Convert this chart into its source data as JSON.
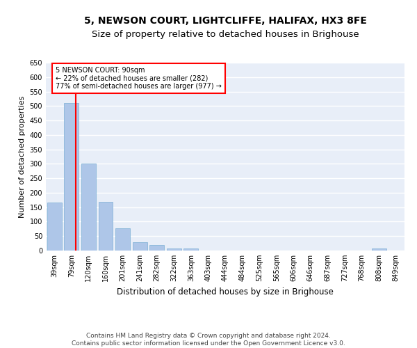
{
  "title": "5, NEWSON COURT, LIGHTCLIFFE, HALIFAX, HX3 8FE",
  "subtitle": "Size of property relative to detached houses in Brighouse",
  "xlabel": "Distribution of detached houses by size in Brighouse",
  "ylabel": "Number of detached properties",
  "categories": [
    "39sqm",
    "79sqm",
    "120sqm",
    "160sqm",
    "201sqm",
    "241sqm",
    "282sqm",
    "322sqm",
    "363sqm",
    "403sqm",
    "444sqm",
    "484sqm",
    "525sqm",
    "565sqm",
    "606sqm",
    "646sqm",
    "687sqm",
    "727sqm",
    "768sqm",
    "808sqm",
    "849sqm"
  ],
  "values": [
    165,
    510,
    300,
    168,
    78,
    30,
    20,
    8,
    8,
    0,
    0,
    0,
    0,
    0,
    0,
    0,
    0,
    0,
    0,
    8,
    0
  ],
  "bar_color": "#aec6e8",
  "bar_edge_color": "#7aafd4",
  "annotation_text": "5 NEWSON COURT: 90sqm\n← 22% of detached houses are smaller (282)\n77% of semi-detached houses are larger (977) →",
  "ylim": [
    0,
    650
  ],
  "yticks": [
    0,
    50,
    100,
    150,
    200,
    250,
    300,
    350,
    400,
    450,
    500,
    550,
    600,
    650
  ],
  "bg_color": "#ffffff",
  "plot_bg_color": "#e8eef8",
  "grid_color": "#ffffff",
  "footer": "Contains HM Land Registry data © Crown copyright and database right 2024.\nContains public sector information licensed under the Open Government Licence v3.0.",
  "title_fontsize": 10,
  "subtitle_fontsize": 9.5,
  "xlabel_fontsize": 8.5,
  "ylabel_fontsize": 8,
  "tick_fontsize": 7,
  "footer_fontsize": 6.5
}
